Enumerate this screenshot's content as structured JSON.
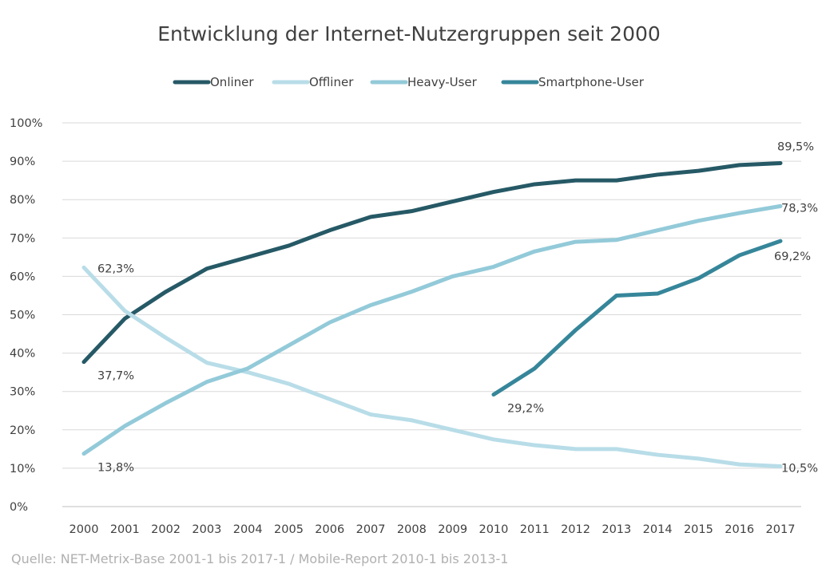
{
  "chart_data": {
    "type": "line",
    "title": "Entwicklung der Internet-Nutzergruppen seit 2000",
    "source": "Quelle: NET-Metrix-Base 2001-1 bis 2017-1 / Mobile-Report 2010-1 bis 2013-1",
    "x": [
      "2000",
      "2001",
      "2002",
      "2003",
      "2004",
      "2005",
      "2006",
      "2007",
      "2008",
      "2009",
      "2010",
      "2011",
      "2012",
      "2013",
      "2014",
      "2015",
      "2016",
      "2017"
    ],
    "ylim": [
      0,
      100
    ],
    "yticks": [
      0,
      10,
      20,
      30,
      40,
      50,
      60,
      70,
      80,
      90,
      100
    ],
    "ytick_labels": [
      "0%",
      "10%",
      "20%",
      "30%",
      "40%",
      "50%",
      "60%",
      "70%",
      "80%",
      "90%",
      "100%"
    ],
    "grid": true,
    "legend_position": "top-center",
    "series": [
      {
        "name": "Onliner",
        "color": "#265966",
        "values": [
          37.7,
          49,
          56,
          62,
          65,
          68,
          72,
          75.5,
          77,
          79.5,
          82,
          84,
          85,
          85,
          86.5,
          87.5,
          89,
          89.5
        ]
      },
      {
        "name": "Offliner",
        "color": "#b8dde8",
        "values": [
          62.3,
          51,
          44,
          37.5,
          35,
          32,
          28,
          24,
          22.5,
          20,
          17.5,
          16,
          15,
          15,
          13.5,
          12.5,
          11,
          10.5
        ]
      },
      {
        "name": "Heavy-User",
        "color": "#93cad9",
        "values": [
          13.8,
          21,
          27,
          32.5,
          36,
          42,
          48,
          52.5,
          56,
          60,
          62.5,
          66.5,
          69,
          69.5,
          72,
          74.5,
          76.5,
          78.3
        ]
      },
      {
        "name": "Smartphone-User",
        "color": "#36869a",
        "values": [
          null,
          null,
          null,
          null,
          null,
          null,
          null,
          null,
          null,
          null,
          29.2,
          36,
          46,
          55,
          55.5,
          59.5,
          65.5,
          69.2
        ]
      }
    ],
    "annotations": [
      {
        "series": 0,
        "index": 0,
        "text": "37,7%",
        "pos": "below-right"
      },
      {
        "series": 0,
        "index": 17,
        "text": "89,5%",
        "pos": "above"
      },
      {
        "series": 1,
        "index": 0,
        "text": "62,3%",
        "pos": "right"
      },
      {
        "series": 1,
        "index": 17,
        "text": "10,5%",
        "pos": "right-inline"
      },
      {
        "series": 2,
        "index": 0,
        "text": "13,8%",
        "pos": "below-right"
      },
      {
        "series": 2,
        "index": 17,
        "text": "78,3%",
        "pos": "right-inline"
      },
      {
        "series": 3,
        "index": 10,
        "text": "29,2%",
        "pos": "below-right"
      },
      {
        "series": 3,
        "index": 17,
        "text": "69,2%",
        "pos": "below"
      }
    ]
  }
}
